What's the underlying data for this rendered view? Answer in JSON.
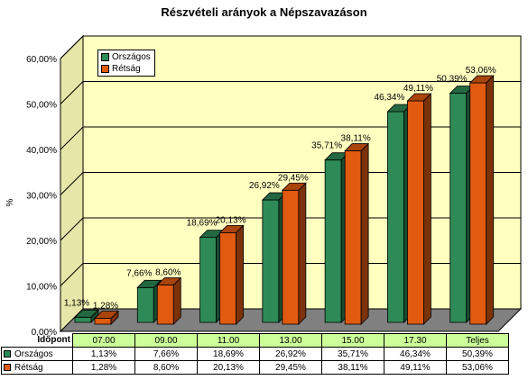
{
  "colors": {
    "orszagos": "#2e8b57",
    "retsag": "#e05a10",
    "wall": "#ffffc0",
    "floor": "#808080"
  },
  "chart_data": {
    "type": "bar",
    "title": "Részvételi arányok a Népszavazáson",
    "xlabel": "Időpont",
    "ylabel": "%",
    "ylim": [
      0,
      60
    ],
    "y_ticks": [
      "0,00%",
      "10,00%",
      "20,00%",
      "30,00%",
      "40,00%",
      "50,00%",
      "60,00%"
    ],
    "categories": [
      "07.00",
      "09.00",
      "11.00",
      "13.00",
      "15.00",
      "17.30",
      "Teljes"
    ],
    "grid": true,
    "legend_position": "top-left",
    "series": [
      {
        "name": "Országos",
        "values": [
          1.13,
          7.66,
          18.69,
          26.92,
          35.71,
          46.34,
          50.39
        ],
        "labels": [
          "1,13%",
          "7,66%",
          "18,69%",
          "26,92%",
          "35,71%",
          "46,34%",
          "50,39%"
        ]
      },
      {
        "name": "Rétság",
        "values": [
          1.28,
          8.6,
          20.13,
          29.45,
          38.11,
          49.11,
          53.06
        ],
        "labels": [
          "1,28%",
          "8,60%",
          "20,13%",
          "29,45%",
          "38,11%",
          "49,11%",
          "53,06%"
        ]
      }
    ]
  }
}
